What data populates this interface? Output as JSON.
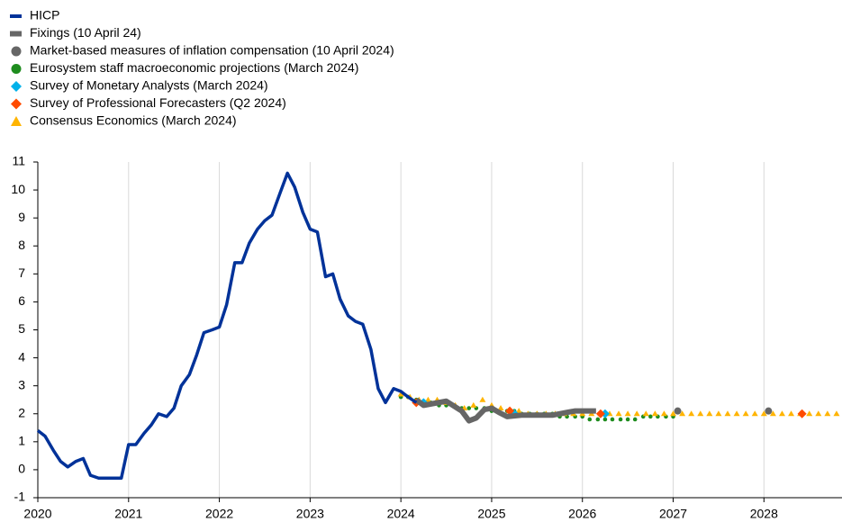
{
  "chart_data": {
    "type": "line",
    "xlim": [
      2020,
      2028.86
    ],
    "xticks": [
      2020,
      2021,
      2022,
      2023,
      2024,
      2025,
      2026,
      2027,
      2028
    ],
    "ylim": [
      -1,
      11
    ],
    "yticks": [
      -1,
      0,
      1,
      2,
      3,
      4,
      5,
      6,
      7,
      8,
      9,
      10,
      11
    ],
    "grid": "x",
    "legend": "top-left",
    "series": [
      {
        "name": "HICP",
        "color": "#003299",
        "style": "line",
        "x": [
          2020,
          2020.08,
          2020.17,
          2020.25,
          2020.33,
          2020.42,
          2020.5,
          2020.58,
          2020.67,
          2020.75,
          2020.83,
          2020.92,
          2021,
          2021.08,
          2021.17,
          2021.25,
          2021.33,
          2021.42,
          2021.5,
          2021.58,
          2021.67,
          2021.75,
          2021.83,
          2021.92,
          2022,
          2022.08,
          2022.17,
          2022.25,
          2022.33,
          2022.42,
          2022.5,
          2022.58,
          2022.67,
          2022.75,
          2022.83,
          2022.92,
          2023,
          2023.08,
          2023.17,
          2023.25,
          2023.33,
          2023.42,
          2023.5,
          2023.58,
          2023.67,
          2023.75,
          2023.83,
          2023.92,
          2024,
          2024.08,
          2024.17
        ],
        "values": [
          1.4,
          1.2,
          0.7,
          0.3,
          0.1,
          0.3,
          0.4,
          -0.2,
          -0.3,
          -0.3,
          -0.3,
          -0.3,
          0.9,
          0.9,
          1.3,
          1.6,
          2.0,
          1.9,
          2.2,
          3.0,
          3.4,
          4.1,
          4.9,
          5.0,
          5.1,
          5.9,
          7.4,
          7.4,
          8.1,
          8.6,
          8.9,
          9.1,
          9.9,
          10.6,
          10.1,
          9.2,
          8.6,
          8.5,
          6.9,
          7.0,
          6.1,
          5.5,
          5.3,
          5.2,
          4.3,
          2.9,
          2.4,
          2.9,
          2.8,
          2.6,
          2.4
        ]
      },
      {
        "name": "Fixings (10 April 24)",
        "color": "#666666",
        "style": "thick",
        "x": [
          2024.17,
          2024.25,
          2024.33,
          2024.5,
          2024.67,
          2024.75,
          2024.83,
          2024.92,
          2025,
          2025.08,
          2025.17,
          2025.33,
          2025.5,
          2025.67,
          2025.83,
          2025.92,
          2026,
          2026.15
        ],
        "values": [
          2.5,
          2.3,
          2.35,
          2.45,
          2.1,
          1.75,
          1.85,
          2.15,
          2.2,
          2.05,
          1.9,
          1.95,
          1.95,
          1.95,
          2.05,
          2.1,
          2.1,
          2.1
        ]
      },
      {
        "name": "Market-based measures of inflation compensation (10 April 2024)",
        "color": "#666666",
        "style": "circle",
        "x": [
          2027.05,
          2028.05
        ],
        "values": [
          2.1,
          2.1
        ]
      },
      {
        "name": "Eurosystem staff macroeconomic projections (March 2024)",
        "color": "#1e8c1e",
        "style": "dot",
        "x": [
          2024,
          2024.08,
          2024.17,
          2024.25,
          2024.33,
          2024.42,
          2024.5,
          2024.58,
          2024.67,
          2024.75,
          2024.83,
          2024.92,
          2025,
          2025.08,
          2025.17,
          2025.25,
          2025.33,
          2025.42,
          2025.5,
          2025.58,
          2025.67,
          2025.75,
          2025.83,
          2025.92,
          2026,
          2026.08,
          2026.17,
          2026.25,
          2026.33,
          2026.42,
          2026.5,
          2026.58,
          2026.67,
          2026.75,
          2026.83,
          2026.92,
          2027
        ],
        "values": [
          2.6,
          2.6,
          2.5,
          2.4,
          2.4,
          2.3,
          2.3,
          2.3,
          2.2,
          2.2,
          2.2,
          2.2,
          2.1,
          2.1,
          2.1,
          2.1,
          2.0,
          2.0,
          2.0,
          2.0,
          2.0,
          1.9,
          1.9,
          1.9,
          1.9,
          1.8,
          1.8,
          1.8,
          1.8,
          1.8,
          1.8,
          1.8,
          1.9,
          1.9,
          1.9,
          1.9,
          1.9
        ]
      },
      {
        "name": "Survey of Monetary Analysts (March 2024)",
        "color": "#00b1ea",
        "style": "diamond",
        "x": [
          2024.25,
          2025.25,
          2026.25
        ],
        "values": [
          2.4,
          2.0,
          2.0
        ]
      },
      {
        "name": "Survey of Professional Forecasters (Q2 2024)",
        "color": "#ff4b00",
        "style": "diamond",
        "x": [
          2024.17,
          2025.2,
          2026.2,
          2028.42
        ],
        "values": [
          2.4,
          2.1,
          2.0,
          2.0
        ]
      },
      {
        "name": "Consensus Economics (March 2024)",
        "color": "#ffb400",
        "style": "triangle",
        "x": [
          2024,
          2024.1,
          2024.2,
          2024.3,
          2024.4,
          2024.5,
          2024.6,
          2024.7,
          2024.8,
          2024.9,
          2025,
          2025.1,
          2025.2,
          2025.3,
          2025.4,
          2025.5,
          2025.6,
          2025.7,
          2025.8,
          2025.9,
          2026,
          2026.1,
          2026.2,
          2026.3,
          2026.4,
          2026.5,
          2026.6,
          2026.7,
          2026.8,
          2026.9,
          2027,
          2027.1,
          2027.2,
          2027.3,
          2027.4,
          2027.5,
          2027.6,
          2027.7,
          2027.8,
          2027.9,
          2028,
          2028.1,
          2028.2,
          2028.3,
          2028.4,
          2028.5,
          2028.6,
          2028.7,
          2028.8
        ],
        "values": [
          2.7,
          2.6,
          2.5,
          2.5,
          2.5,
          2.4,
          2.3,
          2.2,
          2.3,
          2.5,
          2.3,
          2.2,
          2.1,
          2.1,
          2.0,
          2.0,
          2.0,
          2.0,
          2.0,
          2.0,
          2.0,
          2.0,
          2.0,
          2.0,
          2.0,
          2.0,
          2.0,
          2.0,
          2.0,
          2.0,
          2.0,
          2.0,
          2.0,
          2.0,
          2.0,
          2.0,
          2.0,
          2.0,
          2.0,
          2.0,
          2.0,
          2.0,
          2.0,
          2.0,
          2.0,
          2.0,
          2.0,
          2.0,
          2.0
        ]
      }
    ]
  }
}
